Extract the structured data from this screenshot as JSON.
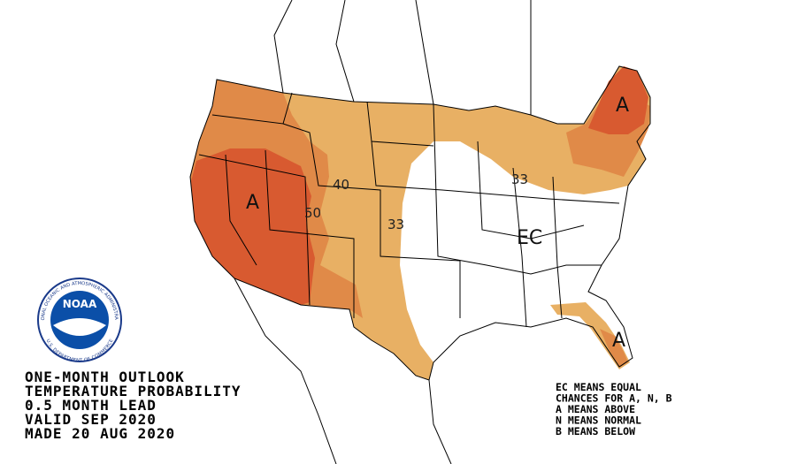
{
  "map": {
    "contour_labels": [
      "40",
      "50",
      "33",
      "33"
    ],
    "region_labels": [
      "A",
      "EC",
      "A",
      "A"
    ],
    "logo": {
      "text": "NOAA",
      "ring_top": "NATIONAL OCEANIC AND ATMOSPHERIC ADMINISTRATION",
      "ring_bottom": "U.S. DEPARTMENT OF COMMERCE"
    },
    "caption": [
      "ONE-MONTH OUTLOOK",
      "TEMPERATURE PROBABILITY",
      "0.5 MONTH LEAD",
      "VALID SEP 2020",
      "MADE 20 AUG 2020"
    ],
    "legend": [
      "EC MEANS EQUAL",
      "CHANCES FOR A, N, B",
      "A MEANS ABOVE",
      "N MEANS NORMAL",
      "B MEANS BELOW"
    ]
  }
}
